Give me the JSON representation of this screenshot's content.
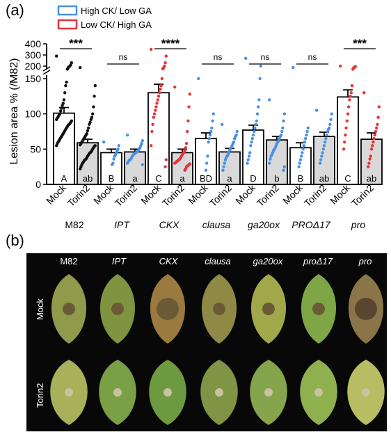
{
  "panels": {
    "a": "(a)",
    "b": "(b)"
  },
  "legend": [
    {
      "label": "High CK/ Low GA",
      "color": "#4a90e2"
    },
    {
      "label": "Low CK/ High GA",
      "color": "#e8333a"
    }
  ],
  "colors": {
    "blue": "#4a90e2",
    "red": "#e8333a",
    "black": "#111111",
    "torin_fill": "#d9d9d9"
  },
  "chart_data": {
    "type": "bar",
    "ylabel": "Lesion area % (/M82)",
    "y_axis": {
      "lower_ticks": [
        0,
        50,
        100,
        150
      ],
      "upper_ticks": [
        200,
        300,
        400
      ],
      "broken": true,
      "lower_range": [
        0,
        155
      ],
      "upper_range": [
        170,
        400
      ]
    },
    "genotypes": [
      {
        "name": "M82",
        "italic": false,
        "color": "black",
        "bars": [
          {
            "treatment": "Mock",
            "mean": 101,
            "sem": 8,
            "letter": "A"
          },
          {
            "treatment": "Torin2",
            "mean": 59,
            "sem": 5,
            "letter": "ab"
          }
        ],
        "significance": "***"
      },
      {
        "name": "IPT",
        "italic": true,
        "color": "blue",
        "bars": [
          {
            "treatment": "Mock",
            "mean": 45,
            "sem": 5,
            "letter": "B"
          },
          {
            "treatment": "Torin2",
            "mean": 46,
            "sem": 4,
            "letter": "a"
          }
        ],
        "significance": "ns"
      },
      {
        "name": "CKX",
        "italic": true,
        "color": "red",
        "bars": [
          {
            "treatment": "Mock",
            "mean": 130,
            "sem": 12,
            "letter": "C"
          },
          {
            "treatment": "Torin2",
            "mean": 45,
            "sem": 5,
            "letter": "a"
          }
        ],
        "significance": "****"
      },
      {
        "name": "clausa",
        "italic": true,
        "color": "blue",
        "bars": [
          {
            "treatment": "Mock",
            "mean": 65,
            "sem": 8,
            "letter": "BD"
          },
          {
            "treatment": "Torin2",
            "mean": 46,
            "sem": 5,
            "letter": "a"
          }
        ],
        "significance": "ns"
      },
      {
        "name": "ga20ox",
        "italic": true,
        "color": "blue",
        "bars": [
          {
            "treatment": "Mock",
            "mean": 77,
            "sem": 7,
            "letter": "D"
          },
          {
            "treatment": "Torin2",
            "mean": 63,
            "sem": 5,
            "letter": "b"
          }
        ],
        "significance": "ns"
      },
      {
        "name": "PROΔ17",
        "italic": true,
        "color": "blue",
        "bars": [
          {
            "treatment": "Mock",
            "mean": 52,
            "sem": 7,
            "letter": "B"
          },
          {
            "treatment": "Torin2",
            "mean": 68,
            "sem": 6,
            "letter": "ab"
          }
        ],
        "significance": "ns"
      },
      {
        "name": "pro",
        "italic": true,
        "color": "red",
        "bars": [
          {
            "treatment": "Mock",
            "mean": 124,
            "sem": 10,
            "letter": "C"
          },
          {
            "treatment": "Torin2",
            "mean": 64,
            "sem": 9,
            "letter": "ab"
          }
        ],
        "significance": "***"
      }
    ],
    "points": [
      [
        [
          290,
          230,
          210,
          200,
          190,
          180,
          160,
          145,
          140,
          130,
          120,
          115,
          112,
          108,
          104,
          100,
          98,
          96,
          94,
          92,
          90,
          88,
          86,
          85,
          84,
          82,
          80,
          78,
          76,
          74,
          72,
          70,
          68,
          66,
          64,
          62,
          60,
          58,
          55
        ],
        [
          180,
          140,
          125,
          110,
          100,
          95,
          92,
          88,
          85,
          80,
          76,
          72,
          70,
          68,
          66,
          64,
          62,
          60,
          58,
          56,
          55,
          54,
          52,
          50,
          48,
          46,
          45,
          44,
          42,
          40,
          38,
          36,
          35,
          34,
          32,
          30,
          28,
          25,
          22
        ]
      ],
      [
        [
          60,
          55,
          50,
          48,
          45,
          42,
          40,
          36,
          30,
          28
        ],
        [
          70,
          62,
          58,
          55,
          52,
          50,
          48,
          47,
          46,
          45,
          44,
          43,
          42,
          40,
          38,
          36,
          35,
          34,
          32,
          30,
          28
        ]
      ],
      [
        [
          350,
          290,
          230,
          200,
          180,
          165,
          150,
          140,
          135,
          130,
          125,
          120,
          115,
          110,
          105,
          100,
          95,
          85,
          75,
          55,
          35,
          25
        ],
        [
          138,
          128,
          110,
          90,
          75,
          58,
          52,
          48,
          45,
          44,
          42,
          40,
          38,
          36,
          35,
          34,
          33,
          32,
          31,
          30,
          29,
          28,
          27,
          26,
          25,
          22,
          20
        ]
      ],
      [
        [
          150,
          100,
          90,
          80,
          75,
          70,
          65,
          60,
          40,
          30,
          20
        ],
        [
          85,
          75,
          70,
          68,
          65,
          60,
          58,
          55,
          52,
          50,
          48,
          45,
          42,
          40,
          38,
          35,
          30,
          25,
          20
        ]
      ],
      [
        [
          270,
          200,
          150,
          120,
          110,
          100,
          90,
          85,
          80,
          75,
          70,
          65,
          60,
          55,
          45,
          40,
          35,
          30
        ],
        [
          120,
          100,
          90,
          80,
          75,
          70,
          68,
          65,
          62,
          60,
          58,
          55,
          52,
          50,
          48,
          45,
          42,
          40,
          36,
          30,
          25,
          20
        ]
      ],
      [
        [
          182,
          80,
          75,
          70,
          65,
          60,
          55,
          50,
          45,
          40,
          35,
          30,
          25
        ],
        [
          105,
          100,
          92,
          85,
          80,
          78,
          75,
          70,
          65,
          60,
          55,
          50,
          45,
          40,
          35,
          30
        ]
      ],
      [
        [
          200,
          195,
          185,
          180,
          160,
          140,
          130,
          125,
          120,
          110,
          100,
          90,
          80,
          70,
          60,
          50
        ],
        [
          130,
          110,
          95,
          85,
          80,
          75,
          70,
          65,
          60,
          55,
          50,
          40,
          36,
          30,
          25
        ]
      ]
    ]
  },
  "photo": {
    "columns": [
      "M82",
      "IPT",
      "CKX",
      "clausa",
      "ga20ox",
      "proΔ17",
      "pro"
    ],
    "column_italic": [
      false,
      true,
      true,
      true,
      true,
      true,
      true
    ],
    "rows": [
      "Mock",
      "Torin2"
    ]
  }
}
